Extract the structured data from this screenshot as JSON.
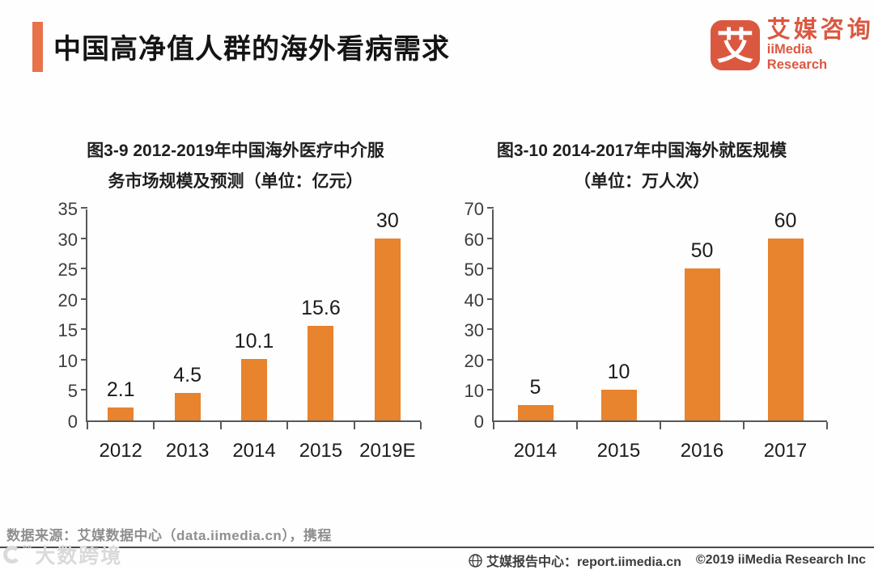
{
  "header": {
    "title": "中国高净值人群的海外看病需求",
    "logo": {
      "glyph": "艾",
      "name_cn": "艾媒咨询",
      "name_en": "iiMedia Research"
    }
  },
  "colors": {
    "accent_orange": "#E8724A",
    "bar_orange": "#E8832E",
    "logo_orange": "#DB5840",
    "axis_gray": "#595959"
  },
  "chart_data": [
    {
      "type": "bar",
      "title_line1": "图3-9 2012-2019年中国海外医疗中介服",
      "title_line2": "务市场规模及预测（单位：亿元）",
      "categories": [
        "2012",
        "2013",
        "2014",
        "2015",
        "2019E"
      ],
      "values": [
        2.1,
        4.5,
        10.1,
        15.6,
        30
      ],
      "unit": "亿元",
      "xlabel": "",
      "ylabel": "",
      "ylim": [
        0,
        35
      ],
      "ytick_step": 5,
      "grid": false,
      "legend": "none",
      "bar_color": "#E8832E"
    },
    {
      "type": "bar",
      "title_line1": "图3-10 2014-2017年中国海外就医规模",
      "title_line2": "（单位：万人次）",
      "categories": [
        "2014",
        "2015",
        "2016",
        "2017"
      ],
      "values": [
        5,
        10,
        50,
        60
      ],
      "unit": "万人次",
      "xlabel": "",
      "ylabel": "",
      "ylim": [
        0,
        70
      ],
      "ytick_step": 10,
      "grid": false,
      "legend": "none",
      "bar_color": "#E8832E"
    }
  ],
  "footer": {
    "source": "数据来源：艾媒数据中心（data.iimedia.cn），携程",
    "watermark": "大数跨境",
    "watermark_degrees": "°°",
    "report_center": "艾媒报告中心：report.iimedia.cn",
    "copyright": "©2019  iiMedia Research  Inc"
  }
}
